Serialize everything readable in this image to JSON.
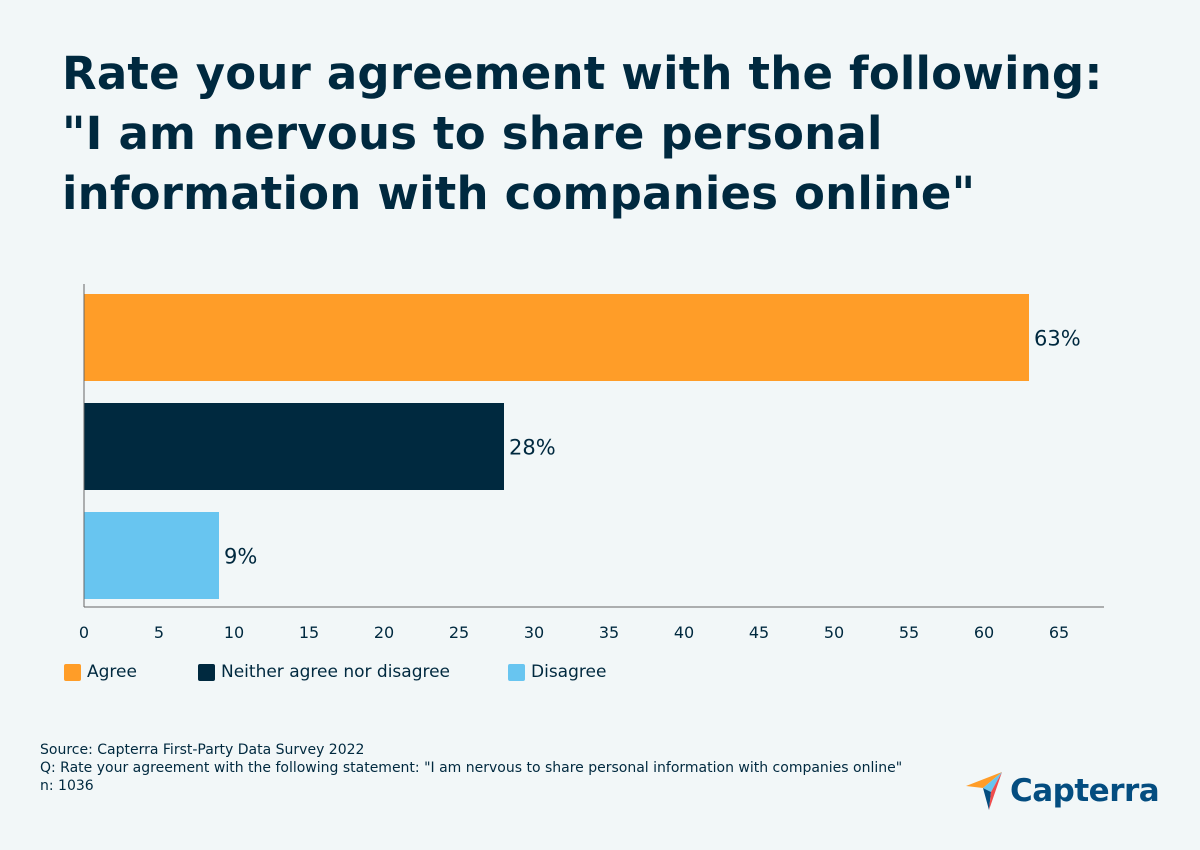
{
  "title": {
    "line1": "Rate your agreement with the following:",
    "line2": "\"I am nervous to share personal",
    "line3": "information with companies online\""
  },
  "chart_data": {
    "type": "bar",
    "orientation": "horizontal",
    "categories": [
      "Agree",
      "Neither agree nor disagree",
      "Disagree"
    ],
    "values": [
      63,
      28,
      9
    ],
    "data_labels": [
      "63%",
      "28%",
      "9%"
    ],
    "colors": [
      "#ff9d28",
      "#00293f",
      "#68c5f0"
    ],
    "xlim": [
      0,
      68
    ],
    "xticks": [
      0,
      5,
      10,
      15,
      20,
      25,
      30,
      35,
      40,
      45,
      50,
      55,
      60,
      65
    ],
    "grid": false,
    "legend_position": "bottom-left"
  },
  "legend": [
    {
      "label": "Agree",
      "color": "#ff9d28"
    },
    {
      "label": "Neither agree nor disagree",
      "color": "#00293f"
    },
    {
      "label": "Disagree",
      "color": "#68c5f0"
    }
  ],
  "footer": {
    "source": "Source: Capterra First-Party Data Survey 2022",
    "question": "Q: Rate your agreement with the following statement: \"I am nervous to share personal information with companies online\"",
    "n": "n: 1036"
  },
  "logo": {
    "text": "Capterra",
    "icon": "capterra-arrow-icon",
    "colors": [
      "#ff9d28",
      "#68c5f0",
      "#044d80",
      "#ef4c4c"
    ]
  }
}
